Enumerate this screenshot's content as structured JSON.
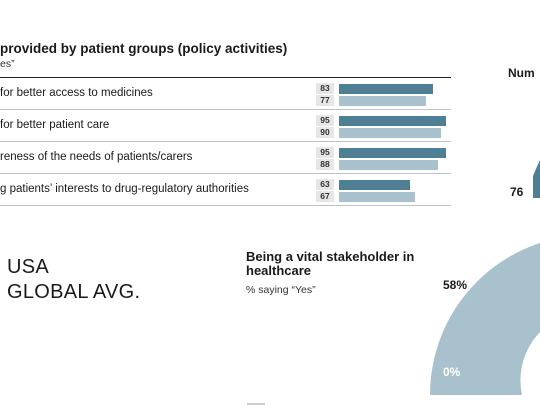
{
  "bar_chart": {
    "title": "provided by patient groups (policy activities)",
    "subtitle": "es”"
  },
  "legend": {
    "usa": "USA",
    "global": "GLOBAL AVG."
  },
  "gauge_partial": {
    "title": "Num",
    "value_label": "76"
  },
  "gauge_main": {
    "title": "Being a vital stakeholder in healthcare",
    "subtitle": "% saying “Yes”",
    "value_label": "58%",
    "zero_label": "0%"
  },
  "chart_data": [
    {
      "type": "bar",
      "orientation": "horizontal",
      "title": "provided by patient groups (policy activities)",
      "subtitle": "es”",
      "categories": [
        "for better access to medicines",
        "for better patient care",
        "reness of the needs of patients/carers",
        "g patients’ interests to drug-regulatory authorities"
      ],
      "series": [
        {
          "name": "USA",
          "values": [
            83,
            95,
            95,
            63
          ],
          "color": "#4f7f95"
        },
        {
          "name": "GLOBAL AVG.",
          "values": [
            77,
            90,
            88,
            67
          ],
          "color": "#a9c1cd"
        }
      ],
      "xlim": [
        0,
        100
      ],
      "grid": false,
      "legend": "left-below"
    },
    {
      "type": "pie",
      "subtype": "half-donut gauge",
      "title": "Being a vital stakeholder in healthcare",
      "subtitle": "% saying “Yes”",
      "value": 58,
      "range": [
        0,
        100
      ],
      "labels": [
        "0%",
        "58%"
      ],
      "color": "#a9c1cd"
    }
  ]
}
